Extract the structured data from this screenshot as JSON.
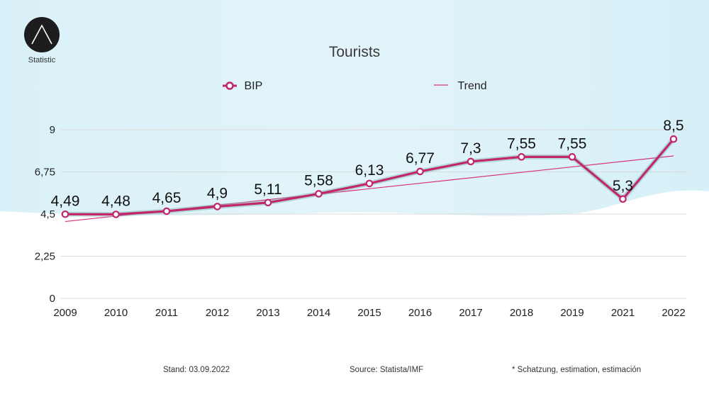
{
  "brand": {
    "logo_label": "Statistic"
  },
  "colors": {
    "series": "#c2276d",
    "trend": "#d9327a",
    "grid": "#d9d9d9",
    "bg_band": "#d8f1f8"
  },
  "chart_data": {
    "type": "line",
    "title": "Tourists",
    "xlabel": "",
    "ylabel": "",
    "categories": [
      "2009",
      "2010",
      "2011",
      "2012",
      "2013",
      "2014",
      "2015",
      "2016",
      "2017",
      "2018",
      "2019",
      "2021",
      "2022"
    ],
    "series": [
      {
        "name": "BIP",
        "values": [
          4.49,
          4.48,
          4.65,
          4.9,
          5.11,
          5.58,
          6.13,
          6.77,
          7.3,
          7.55,
          7.55,
          5.3,
          8.5
        ]
      }
    ],
    "data_labels": [
      "4,49",
      "4,48",
      "4,65",
      "4,9",
      "5,11",
      "5,58",
      "6,13",
      "6,77",
      "7,3",
      "7,55",
      "7,55",
      "5,3",
      "8,5"
    ],
    "trend": {
      "name": "Trend",
      "start": 4.1,
      "end": 7.6
    },
    "yticks": [
      0,
      2.25,
      4.5,
      6.75,
      9
    ],
    "ytick_labels": [
      "0",
      "2,25",
      "4,5",
      "6,75",
      "9"
    ],
    "ylim": [
      0,
      9
    ],
    "grid": true,
    "legend_position": "top-center"
  },
  "footer": {
    "stand": "Stand: 03.09.2022",
    "source": "Source: Statista/IMF",
    "note": "* Schatzung, estimation, estimación"
  }
}
